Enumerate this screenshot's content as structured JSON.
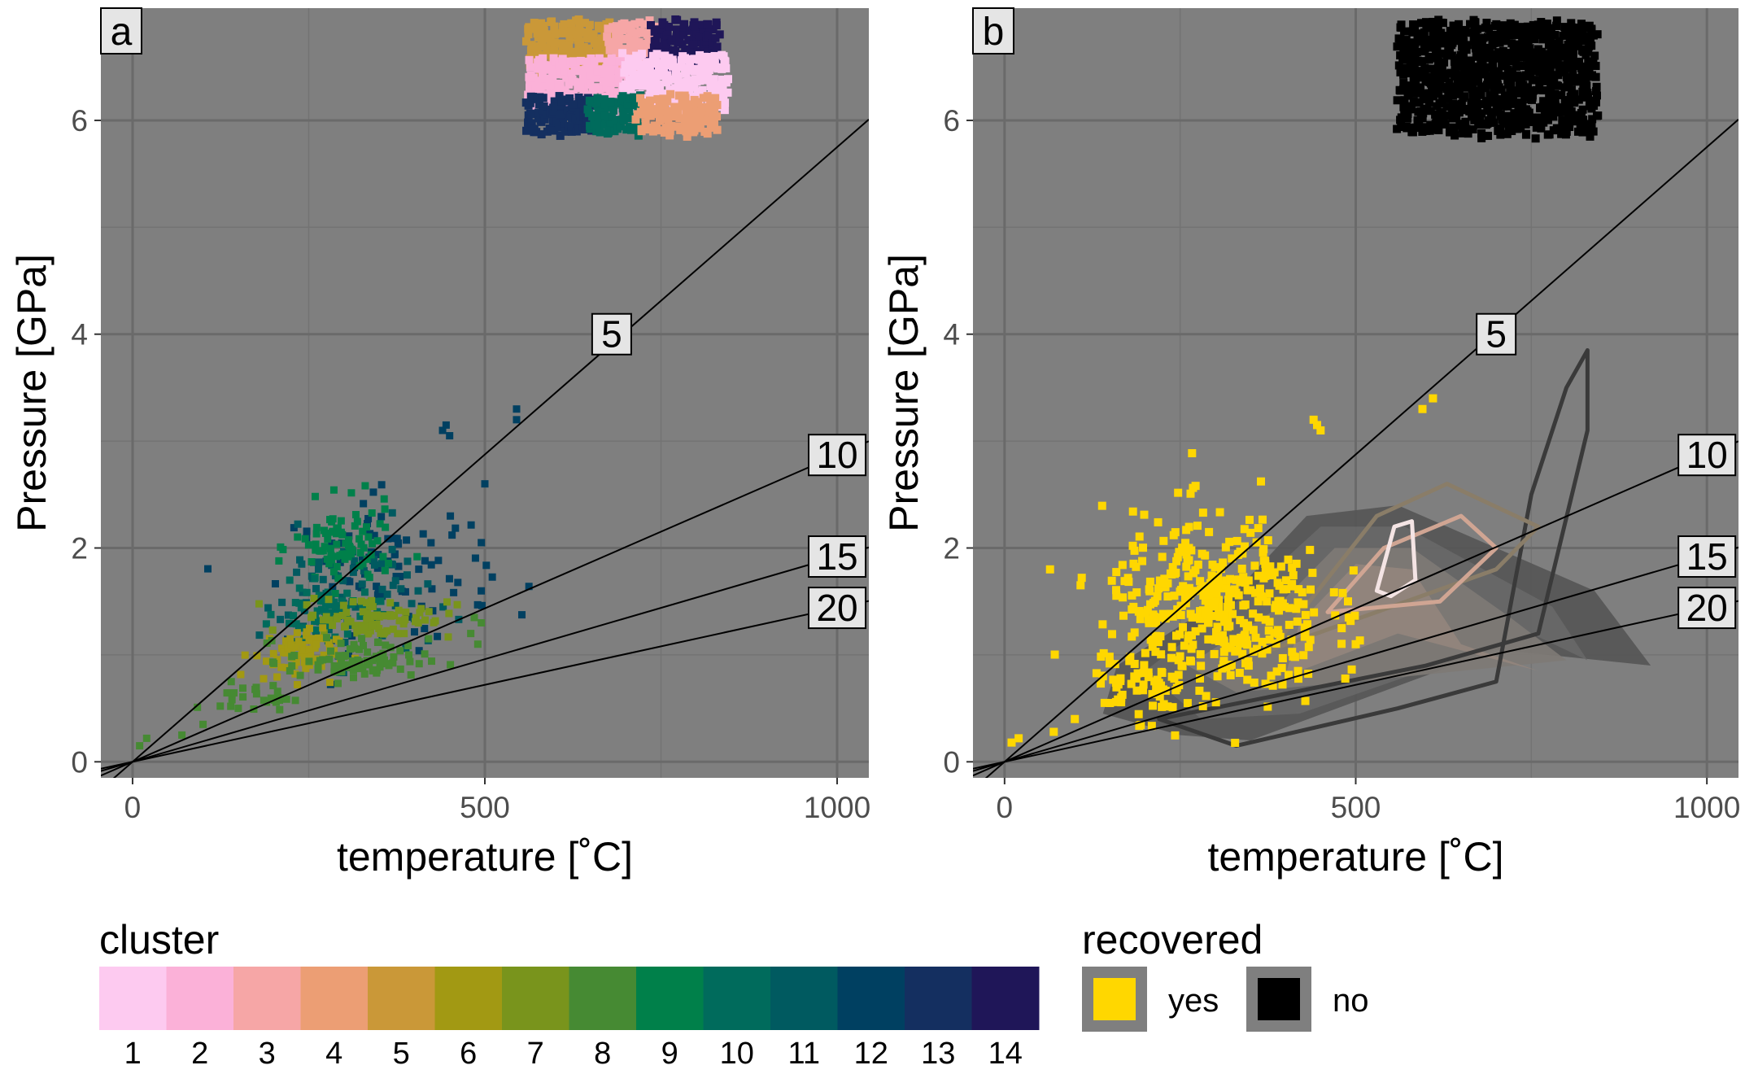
{
  "chart_data": [
    {
      "type": "scatter",
      "panel_label": "a",
      "xlabel": "temperature [˚C]",
      "ylabel": "Pressure [GPa]",
      "xlim": [
        -45,
        1045
      ],
      "ylim": [
        -0.15,
        7.05
      ],
      "xticks": [
        0,
        500,
        1000
      ],
      "yticks": [
        0,
        2,
        4,
        6
      ],
      "grid": true,
      "background": "#7f7f7f",
      "geotherms": [
        {
          "label": "5",
          "label_x": 680,
          "label_y": 4.0,
          "slope_gpa_per_c": 0.00575
        },
        {
          "label": "10",
          "label_x": 1000,
          "label_y": 2.87,
          "slope_gpa_per_c": 0.00287
        },
        {
          "label": "15",
          "label_x": 1000,
          "label_y": 1.92,
          "slope_gpa_per_c": 0.00192
        },
        {
          "label": "20",
          "label_x": 1000,
          "label_y": 1.44,
          "slope_gpa_per_c": 0.00144
        }
      ],
      "cluster_regions": [
        {
          "cluster": 5,
          "x": [
            565,
            680
          ],
          "y": [
            6.5,
            6.9
          ]
        },
        {
          "cluster": 3,
          "x": [
            680,
            740
          ],
          "y": [
            6.5,
            6.9
          ]
        },
        {
          "cluster": 14,
          "x": [
            740,
            830
          ],
          "y": [
            6.5,
            6.9
          ]
        },
        {
          "cluster": 2,
          "x": [
            565,
            700
          ],
          "y": [
            6.15,
            6.55
          ]
        },
        {
          "cluster": 1,
          "x": [
            700,
            840
          ],
          "y": [
            6.1,
            6.6
          ]
        },
        {
          "cluster": 13,
          "x": [
            560,
            650
          ],
          "y": [
            5.9,
            6.2
          ]
        },
        {
          "cluster": 10,
          "x": [
            650,
            720
          ],
          "y": [
            5.9,
            6.2
          ]
        },
        {
          "cluster": 4,
          "x": [
            720,
            830
          ],
          "y": [
            5.9,
            6.2
          ]
        }
      ],
      "cluster_clouds": [
        {
          "cluster": 12,
          "cx": 370,
          "cy": 1.75,
          "sx": 70,
          "sy": 0.35,
          "n": 90
        },
        {
          "cluster": 11,
          "cx": 300,
          "cy": 1.55,
          "sx": 60,
          "sy": 0.3,
          "n": 80
        },
        {
          "cluster": 9,
          "cx": 300,
          "cy": 2.0,
          "sx": 35,
          "sy": 0.2,
          "n": 90
        },
        {
          "cluster": 10,
          "cx": 275,
          "cy": 1.4,
          "sx": 35,
          "sy": 0.12,
          "n": 60
        },
        {
          "cluster": 7,
          "cx": 345,
          "cy": 1.35,
          "sx": 55,
          "sy": 0.1,
          "n": 80
        },
        {
          "cluster": 6,
          "cx": 230,
          "cy": 1.0,
          "sx": 30,
          "sy": 0.12,
          "n": 70
        },
        {
          "cluster": 8,
          "cx": 320,
          "cy": 0.95,
          "sx": 50,
          "sy": 0.1,
          "n": 80
        },
        {
          "cluster": 8,
          "cx": 175,
          "cy": 0.6,
          "sx": 25,
          "sy": 0.06,
          "n": 25
        }
      ],
      "cluster_points": [
        {
          "cluster": 8,
          "x": [
            10,
            20,
            70,
            100,
            140,
            150
          ],
          "y": [
            0.15,
            0.22,
            0.25,
            0.35,
            0.75,
            0.5
          ]
        },
        {
          "cluster": 8,
          "x": [
            480,
            485,
            490,
            495
          ],
          "y": [
            1.2,
            1.35,
            1.1,
            1.3
          ]
        },
        {
          "cluster": 12,
          "x": [
            445,
            440,
            450,
            545,
            545,
            500,
            495
          ],
          "y": [
            3.15,
            3.1,
            3.05,
            3.3,
            3.2,
            2.6,
            2.05
          ]
        }
      ]
    },
    {
      "type": "scatter",
      "panel_label": "b",
      "xlabel": "temperature [˚C]",
      "ylabel": "Pressure [GPa]",
      "xlim": [
        -45,
        1045
      ],
      "ylim": [
        -0.15,
        7.05
      ],
      "xticks": [
        0,
        500,
        1000
      ],
      "yticks": [
        0,
        2,
        4,
        6
      ],
      "grid": true,
      "background": "#7f7f7f",
      "geotherms": [
        {
          "label": "5",
          "label_x": 700,
          "label_y": 4.0,
          "slope_gpa_per_c": 0.00575
        },
        {
          "label": "10",
          "label_x": 1000,
          "label_y": 2.87,
          "slope_gpa_per_c": 0.00287
        },
        {
          "label": "15",
          "label_x": 1000,
          "label_y": 1.92,
          "slope_gpa_per_c": 0.00192
        },
        {
          "label": "20",
          "label_x": 1000,
          "label_y": 1.44,
          "slope_gpa_per_c": 0.00144
        }
      ],
      "recovered_no_region": {
        "x": [
          565,
          840
        ],
        "y": [
          5.9,
          6.9
        ]
      },
      "recovered_yes_clouds": [
        {
          "cx": 300,
          "cy": 1.4,
          "sx": 80,
          "sy": 0.45,
          "n": 420
        },
        {
          "cx": 200,
          "cy": 0.7,
          "sx": 40,
          "sy": 0.1,
          "n": 40
        }
      ],
      "recovered_yes_points": {
        "x": [
          10,
          20,
          70,
          100,
          140,
          150,
          440,
          450,
          445,
          595,
          610,
          480,
          490,
          500
        ],
        "y": [
          0.18,
          0.22,
          0.28,
          0.4,
          0.8,
          0.55,
          3.2,
          3.1,
          3.15,
          3.3,
          3.4,
          1.25,
          1.35,
          1.1
        ]
      },
      "density_contours": [
        [
          [
            250,
            0.25
          ],
          [
            350,
            0.2
          ],
          [
            700,
            1.05
          ],
          [
            920,
            0.9
          ],
          [
            840,
            1.6
          ],
          [
            560,
            2.4
          ],
          [
            430,
            2.3
          ],
          [
            330,
            1.6
          ],
          [
            160,
            0.9
          ],
          [
            140,
            0.45
          ]
        ],
        [
          [
            280,
            0.4
          ],
          [
            420,
            0.45
          ],
          [
            750,
            1.2
          ],
          [
            830,
            0.95
          ],
          [
            780,
            1.45
          ],
          [
            570,
            2.2
          ],
          [
            450,
            2.2
          ],
          [
            350,
            1.6
          ],
          [
            200,
            0.85
          ]
        ],
        [
          [
            330,
            0.65
          ],
          [
            500,
            0.75
          ],
          [
            800,
            0.95
          ],
          [
            720,
            1.35
          ],
          [
            580,
            2.0
          ],
          [
            470,
            2.0
          ],
          [
            380,
            1.4
          ],
          [
            260,
            0.9
          ]
        ],
        [
          [
            400,
            0.8
          ],
          [
            560,
            1.2
          ],
          [
            760,
            0.85
          ],
          [
            650,
            1.1
          ],
          [
            580,
            1.8
          ],
          [
            500,
            1.85
          ],
          [
            420,
            1.3
          ]
        ]
      ],
      "density_lines": [
        [
          [
            220,
            0.4
          ],
          [
            330,
            0.15
          ],
          [
            560,
            0.5
          ],
          [
            700,
            0.75
          ],
          [
            750,
            2.5
          ],
          [
            800,
            3.5
          ],
          [
            830,
            3.85
          ],
          [
            830,
            3.1
          ],
          [
            760,
            1.2
          ],
          [
            600,
            0.9
          ]
        ],
        [
          [
            380,
            1.05
          ],
          [
            530,
            2.3
          ],
          [
            630,
            2.6
          ],
          [
            760,
            2.2
          ],
          [
            700,
            1.8
          ]
        ],
        [
          [
            460,
            1.4
          ],
          [
            540,
            2.0
          ],
          [
            650,
            2.3
          ],
          [
            700,
            2.0
          ],
          [
            620,
            1.5
          ]
        ],
        [
          [
            530,
            1.6
          ],
          [
            555,
            2.2
          ],
          [
            580,
            2.25
          ],
          [
            585,
            1.7
          ],
          [
            550,
            1.55
          ]
        ]
      ]
    }
  ],
  "legend_cluster": {
    "title": "cluster",
    "labels": [
      "1",
      "2",
      "3",
      "4",
      "5",
      "6",
      "7",
      "8",
      "9",
      "10",
      "11",
      "12",
      "13",
      "14"
    ],
    "colors": [
      "#fdcaf0",
      "#fbb1d8",
      "#f6a6a6",
      "#ec9e74",
      "#ca9838",
      "#a29913",
      "#79941c",
      "#468a33",
      "#00804a",
      "#006b5c",
      "#005a60",
      "#004061",
      "#142f60",
      "#1f1658"
    ]
  },
  "legend_recovered": {
    "title": "recovered",
    "items": [
      {
        "label": "yes",
        "color": "#ffd700"
      },
      {
        "label": "no",
        "color": "#000000"
      }
    ]
  }
}
